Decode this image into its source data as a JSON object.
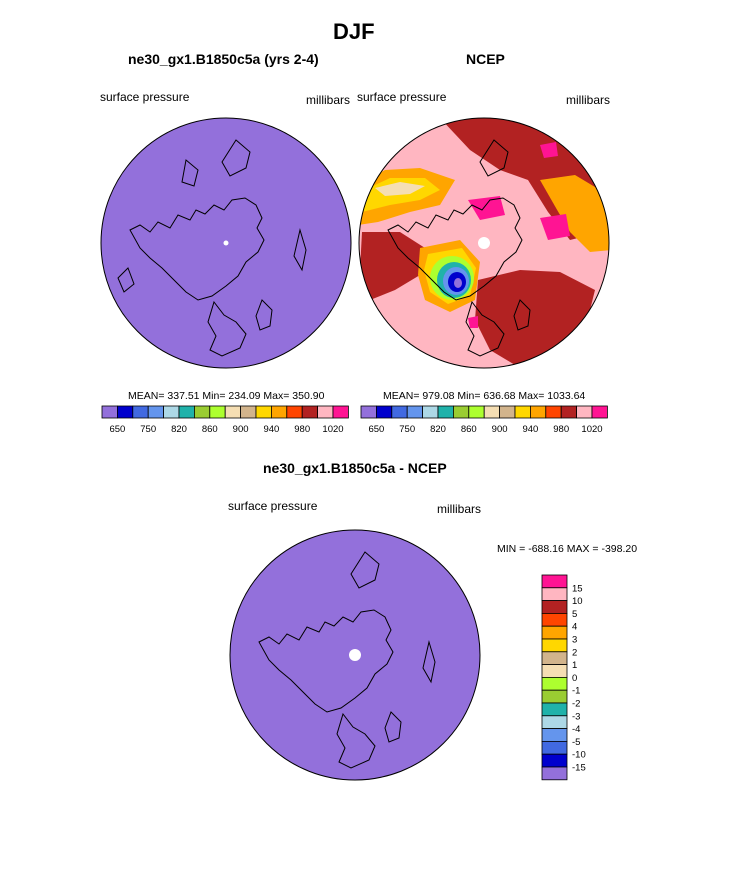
{
  "page": {
    "title": "DJF"
  },
  "panels": [
    {
      "title": "ne30_gx1.B1850c5a (yrs 2-4)",
      "left_label": "surface pressure",
      "right_label": "millibars",
      "stats": "MEAN= 337.51  Min= 234.09  Max= 350.90"
    },
    {
      "title": "NCEP",
      "left_label": "surface pressure",
      "right_label": "millibars",
      "stats": "MEAN= 979.08  Min= 636.68  Max= 1033.64"
    },
    {
      "title": "ne30_gx1.B1850c5a - NCEP",
      "left_label": "surface pressure",
      "right_label": "millibars",
      "stats": "MIN = -688.16 MAX = -398.20"
    }
  ],
  "colorbar_top": {
    "colors": [
      "#9370db",
      "#0000cd",
      "#4169e1",
      "#6495ed",
      "#add8e6",
      "#20b2aa",
      "#9acd32",
      "#adff2f",
      "#f5deb3",
      "#d2b48c",
      "#ffd700",
      "#ffa500",
      "#ff4500",
      "#b22222",
      "#ffb6c1",
      "#ff1493"
    ],
    "tick_labels": [
      "650",
      "750",
      "820",
      "860",
      "900",
      "940",
      "980",
      "1020"
    ]
  },
  "colorbar_diff": {
    "colors_bottom_to_top": [
      "#9370db",
      "#0000cd",
      "#4169e1",
      "#6495ed",
      "#add8e6",
      "#20b2aa",
      "#9acd32",
      "#adff2f",
      "#f5deb3",
      "#d2b48c",
      "#ffd700",
      "#ffa500",
      "#ff4500",
      "#b22222",
      "#ffb6c1",
      "#ff1493"
    ],
    "tick_labels_top_to_bottom": [
      "15",
      "10",
      "5",
      "4",
      "3",
      "2",
      "1",
      "0",
      "-1",
      "-2",
      "-3",
      "-4",
      "-5",
      "-10",
      "-15"
    ]
  },
  "chart_data": [
    {
      "type": "heatmap",
      "title": "ne30_gx1.B1850c5a (yrs 2-4)",
      "subtitle": "DJF",
      "variable": "surface pressure",
      "units": "millibars",
      "projection": "north polar stereographic",
      "mean": 337.51,
      "min": 234.09,
      "max": 350.9,
      "levels": [
        650,
        700,
        750,
        800,
        820,
        840,
        860,
        880,
        900,
        920,
        940,
        960,
        980,
        1000,
        1020
      ],
      "dominant_color": "#9370db"
    },
    {
      "type": "heatmap",
      "title": "NCEP",
      "subtitle": "DJF",
      "variable": "surface pressure",
      "units": "millibars",
      "projection": "north polar stereographic",
      "mean": 979.08,
      "min": 636.68,
      "max": 1033.64,
      "levels": [
        650,
        700,
        750,
        800,
        820,
        840,
        860,
        880,
        900,
        920,
        940,
        960,
        980,
        1000,
        1020
      ]
    },
    {
      "type": "heatmap",
      "title": "ne30_gx1.B1850c5a - NCEP",
      "subtitle": "DJF",
      "variable": "surface pressure",
      "units": "millibars",
      "projection": "north polar stereographic",
      "min": -688.16,
      "max": -398.2,
      "levels": [
        -15,
        -10,
        -5,
        -4,
        -3,
        -2,
        -1,
        0,
        1,
        2,
        3,
        4,
        5,
        10,
        15
      ],
      "dominant_color": "#9370db"
    }
  ]
}
